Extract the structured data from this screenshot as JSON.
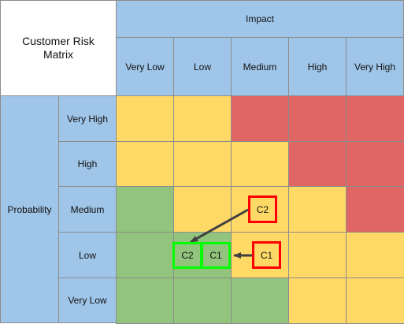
{
  "title": "Customer Risk Matrix",
  "impact_label": "Impact",
  "probability_label": "Probability",
  "impact_levels": [
    "Very Low",
    "Low",
    "Medium",
    "High",
    "Very High"
  ],
  "probability_levels": [
    "Very High",
    "High",
    "Medium",
    "Low",
    "Very Low"
  ],
  "grid_colors": [
    [
      "yellow",
      "yellow",
      "red",
      "red",
      "red"
    ],
    [
      "yellow",
      "yellow",
      "yellow",
      "red",
      "red"
    ],
    [
      "green",
      "yellow",
      "yellow",
      "yellow",
      "red"
    ],
    [
      "green",
      "green",
      "yellow",
      "yellow",
      "yellow"
    ],
    [
      "green",
      "green",
      "green",
      "yellow",
      "yellow"
    ]
  ],
  "palette": {
    "header": "#9fc5e8",
    "yellow": "#ffd966",
    "red": "#e06666",
    "green": "#93c47d",
    "grid_line": "#8c8c8c",
    "current_marker": "#ff0000",
    "target_marker": "#00ff00",
    "arrow": "#404040"
  },
  "markers": {
    "current": [
      {
        "label": "C2",
        "impact": "Medium",
        "probability": "Medium"
      },
      {
        "label": "C1",
        "impact": "Medium",
        "probability": "Low"
      }
    ],
    "target": [
      {
        "label": "C2",
        "impact": "Low",
        "probability": "Low"
      },
      {
        "label": "C1",
        "impact": "Low",
        "probability": "Low"
      }
    ]
  }
}
